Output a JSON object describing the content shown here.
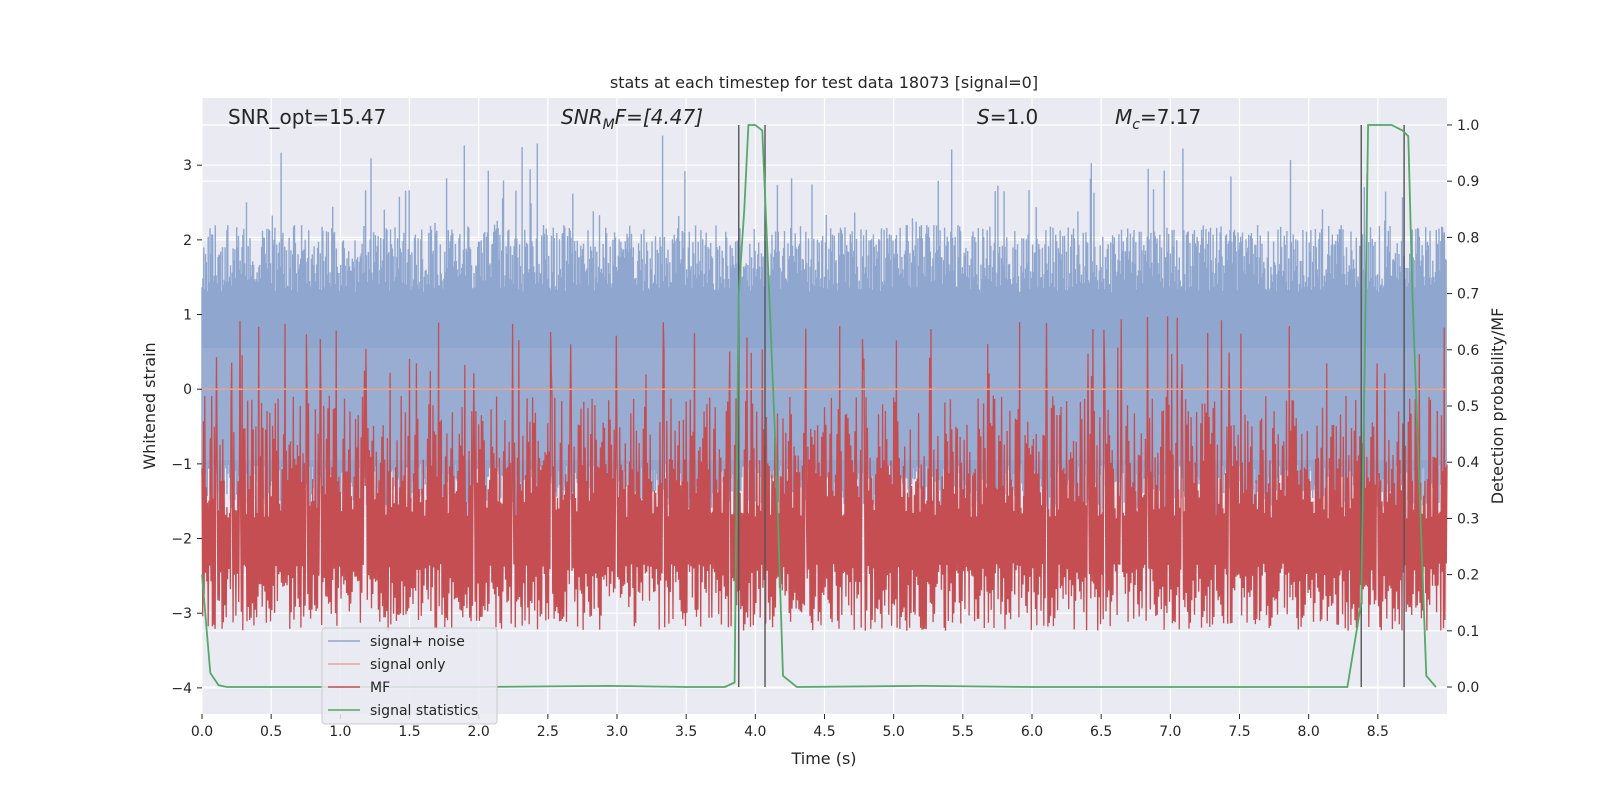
{
  "chart_data": {
    "type": "line",
    "title": "stats at each timestep for test data 18073 [signal=0]",
    "xlabel": "Time (s)",
    "ylabel_left": "Whitened strain",
    "ylabel_right": "Detection probability/MF",
    "xlim": [
      0.0,
      9.0
    ],
    "ylim_left": [
      -4.35,
      3.9
    ],
    "ylim_right": [
      -0.048,
      1.048
    ],
    "x_ticks": [
      "0.0",
      "0.5",
      "1.0",
      "1.5",
      "2.0",
      "2.5",
      "3.0",
      "3.5",
      "4.0",
      "4.5",
      "5.0",
      "5.5",
      "6.0",
      "6.5",
      "7.0",
      "7.5",
      "8.0",
      "8.5"
    ],
    "y_ticks_left": [
      "3",
      "2",
      "1",
      "0",
      "−1",
      "−2",
      "−3",
      "−4"
    ],
    "y_ticks_right": [
      "1.0",
      "0.9",
      "0.8",
      "0.7",
      "0.6",
      "0.5",
      "0.4",
      "0.3",
      "0.2",
      "0.1",
      "0.0"
    ],
    "grid": true,
    "legend_position": "lower-left",
    "annotations": {
      "snr_opt": "SNR_opt=15.47",
      "snr_mf_var": "SNR",
      "snr_mf_sub": "M",
      "snr_mf_rest": "F=[4.47]",
      "s_var": "S",
      "s_rest": "=1.0",
      "mc_var": "M",
      "mc_sub": "c",
      "mc_rest": "=7.17"
    },
    "series": [
      {
        "name": "signal+ noise",
        "color": "#8fa6cf",
        "description_values": {
          "band_upper": [
            1.3,
            2.2
          ],
          "band_lower": [
            -1.0,
            -1.6
          ],
          "peaks_up_max": 3.55,
          "peaks_down_min": -4.05
        }
      },
      {
        "name": "signal only",
        "color": "#e8a58c",
        "values_constant": 0.0
      },
      {
        "name": "MF",
        "color": "#c44e52",
        "band": [
          0.05,
          0.6
        ],
        "axis": "right"
      },
      {
        "name": "signal statistics",
        "color": "#55a868",
        "axis": "right",
        "x": [
          0.0,
          0.06,
          0.12,
          0.18,
          0.5,
          1.0,
          2.0,
          2.95,
          3.5,
          3.78,
          3.85,
          3.88,
          3.92,
          3.95,
          4.0,
          4.05,
          4.1,
          4.15,
          4.2,
          4.3,
          5.2,
          6.0,
          7.0,
          8.0,
          8.28,
          8.38,
          8.43,
          8.5,
          8.6,
          8.68,
          8.72,
          8.75,
          8.85,
          8.92
        ],
        "y": [
          0.2,
          0.025,
          0.003,
          0.0,
          0.0,
          0.0,
          0.0,
          0.002,
          0.0,
          0.0,
          0.008,
          0.7,
          0.85,
          1.0,
          1.0,
          0.99,
          0.7,
          0.4,
          0.02,
          0.0,
          0.002,
          0.0,
          0.0,
          0.0,
          0.0,
          0.15,
          1.0,
          1.0,
          1.0,
          0.99,
          0.98,
          0.7,
          0.02,
          0.0
        ]
      }
    ],
    "vertical_markers_x": [
      3.88,
      4.07,
      8.38,
      8.69
    ]
  }
}
